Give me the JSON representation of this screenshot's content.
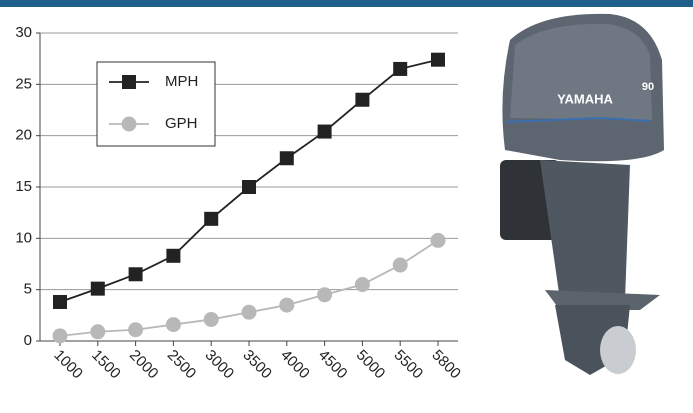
{
  "chart_data": {
    "type": "line",
    "categories": [
      "1000",
      "1500",
      "2000",
      "2500",
      "3000",
      "3500",
      "4000",
      "4500",
      "5000",
      "5500",
      "5800"
    ],
    "series": [
      {
        "name": "MPH",
        "color": "#222222",
        "marker": "square",
        "values": [
          3.8,
          5.1,
          6.5,
          8.3,
          11.9,
          15.0,
          17.8,
          20.4,
          23.5,
          26.5,
          27.4
        ]
      },
      {
        "name": "GPH",
        "color": "#b8b8b8",
        "marker": "circle",
        "values": [
          0.5,
          0.9,
          1.1,
          1.6,
          2.1,
          2.8,
          3.5,
          4.5,
          5.5,
          7.4,
          9.8
        ]
      }
    ],
    "ylim": [
      0,
      30
    ],
    "yticks": [
      0,
      5,
      10,
      15,
      20,
      25,
      30
    ],
    "grid": true,
    "legend": "upper left"
  },
  "engine_image": {
    "brand": "YAMAHA",
    "model": "90"
  }
}
